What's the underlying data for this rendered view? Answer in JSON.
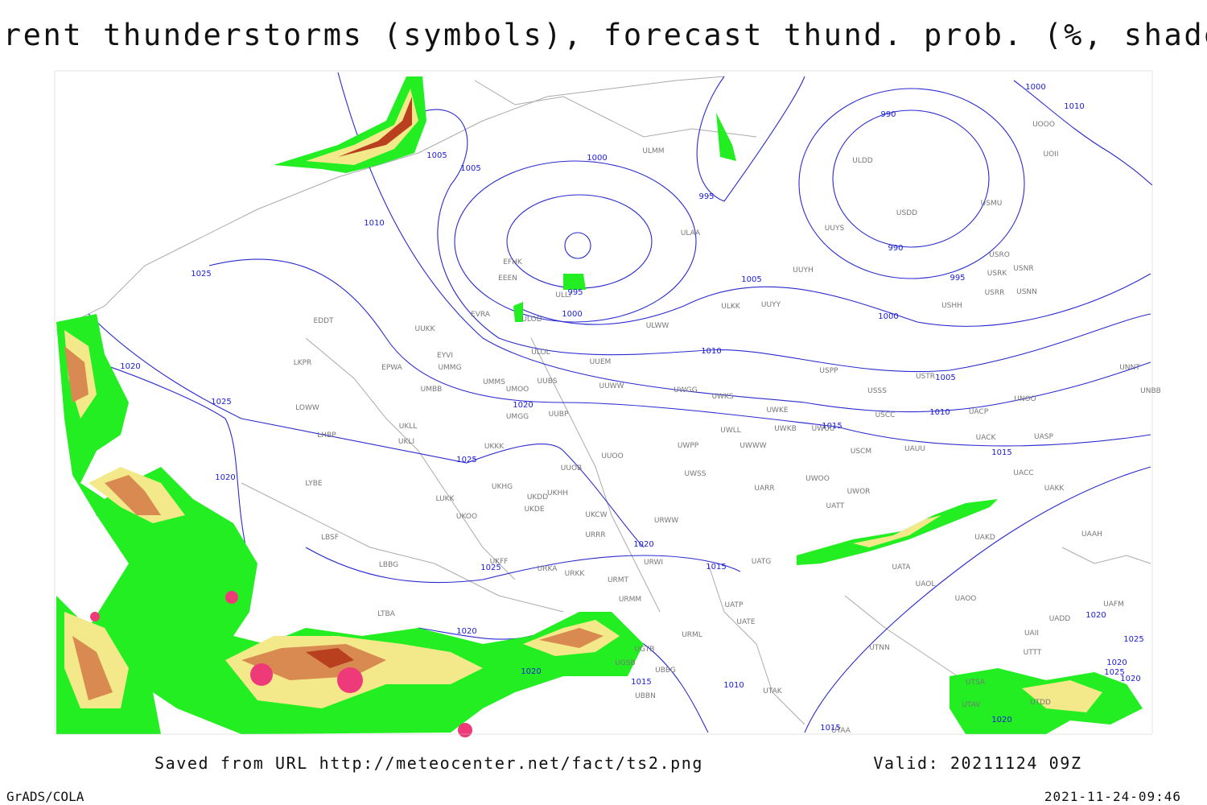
{
  "title": "Current thunderstorms (symbols), forecast thund. prob. (%, shaded)",
  "footer": {
    "source": "Saved from URL http://meteocenter.net/fact/ts2.png",
    "valid": "Valid: 20211124 09Z",
    "software": "GrADS/COLA",
    "timestamp": "2021-11-24-09:46"
  },
  "isobar_labels": [
    "1005",
    "1005",
    "1000",
    "995",
    "990",
    "990",
    "995",
    "1000",
    "1005",
    "1010",
    "1005",
    "1010",
    "1015",
    "1015",
    "1010",
    "1025",
    "1020",
    "1025",
    "1020",
    "1025",
    "1020",
    "1020",
    "1025",
    "1015",
    "1020",
    "1020",
    "1015",
    "1010",
    "1015",
    "995",
    "1000",
    "1000",
    "1010",
    "1020",
    "1025",
    "1020",
    "1025",
    "1020",
    "1020"
  ],
  "stations": [
    "ULMM",
    "ULAA",
    "ULDD",
    "USDD",
    "USMU",
    "UUYS",
    "UUYH",
    "USRO",
    "USRK",
    "USNR",
    "USRR",
    "USNN",
    "USHH",
    "ULKK",
    "UUYY",
    "ULWW",
    "UUEM",
    "UUWW",
    "UWGG",
    "UWKS",
    "UWKE",
    "UWKB",
    "UWUU",
    "UWLL",
    "UWWW",
    "UWPP",
    "USPP",
    "USSS",
    "USTR",
    "USCC",
    "USCM",
    "UAUU",
    "UACP",
    "UNOO",
    "UNNT",
    "UNBB",
    "UACK",
    "UASP",
    "UACC",
    "UAKK",
    "UAAH",
    "UAKD",
    "UATT",
    "UWOO",
    "UWOR",
    "UARR",
    "UWSS",
    "URWW",
    "UUOO",
    "UUOB",
    "UKHH",
    "UKDD",
    "UKDE",
    "UKHG",
    "UKOO",
    "LUKK",
    "UKCW",
    "URRR",
    "URWI",
    "URKA",
    "URKK",
    "URMT",
    "URMM",
    "UUBP",
    "UMGG",
    "UMOO",
    "UUBS",
    "UMMS",
    "UMBB",
    "UMMG",
    "EPWA",
    "EYVI",
    "ULOL",
    "ULOD",
    "EVRA",
    "EEEN",
    "EFHK",
    "ULLI",
    "UKKK",
    "UUKK",
    "UKLL",
    "UKLI",
    "LKPR",
    "LOWW",
    "LHBP",
    "LYBE",
    "LBSF",
    "LBBG",
    "UKFF",
    "LTBA",
    "UGTB",
    "UGSB",
    "UBBG",
    "UBBN",
    "UATG",
    "UATP",
    "UATE",
    "URML",
    "UTAK",
    "UTAA",
    "UTNN",
    "UAOL",
    "UAOO",
    "UATA",
    "UADD",
    "UAFM",
    "UAII",
    "UTTT",
    "UTSA",
    "UTAV",
    "UTDD",
    "EDDT",
    "UOII",
    "UOOO"
  ]
}
